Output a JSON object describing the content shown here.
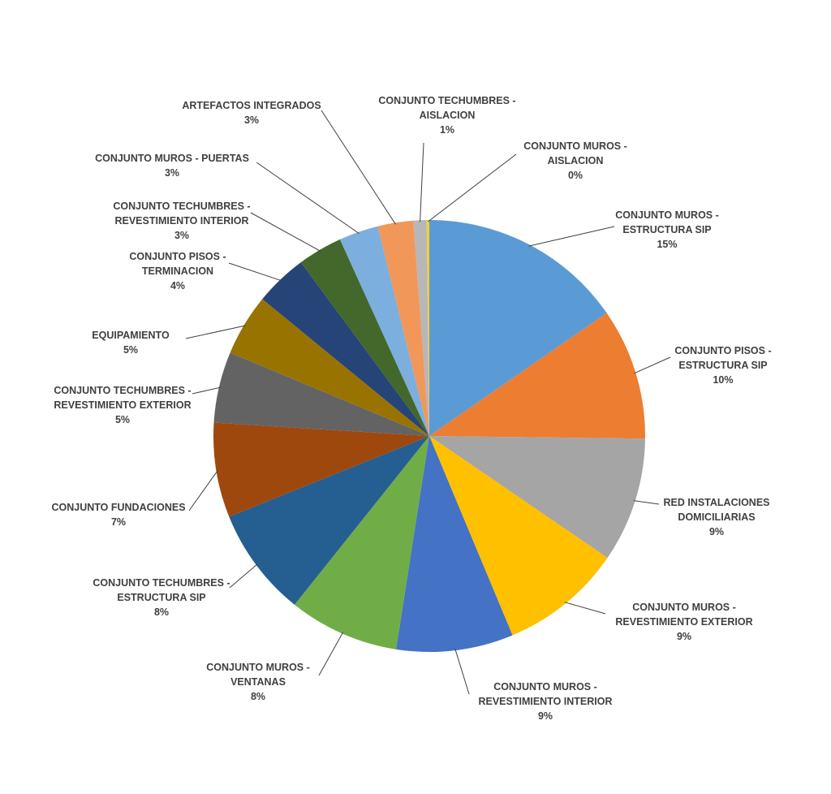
{
  "chart_data": {
    "type": "pie",
    "title": "",
    "start_angle_deg": 0,
    "direction": "clockwise",
    "slices": [
      {
        "label": [
          "CONJUNTO MUROS -",
          "ESTRUCTURA SIP"
        ],
        "display": "15%",
        "value": 15.6,
        "color": "#5b9bd5"
      },
      {
        "label": [
          "CONJUNTO PISOS -",
          "ESTRUCTURA SIP"
        ],
        "display": "10%",
        "value": 10.0,
        "color": "#ed7d31"
      },
      {
        "label": [
          "RED INSTALACIONES",
          "DOMICILIARIAS"
        ],
        "display": "9%",
        "value": 9.5,
        "color": "#a5a5a5"
      },
      {
        "label": [
          "CONJUNTO MUROS -",
          "REVESTIMIENTO EXTERIOR"
        ],
        "display": "9%",
        "value": 9.3,
        "color": "#ffc000"
      },
      {
        "label": [
          "CONJUNTO MUROS -",
          "REVESTIMIENTO INTERIOR"
        ],
        "display": "9%",
        "value": 8.9,
        "color": "#4472c4"
      },
      {
        "label": [
          "CONJUNTO MUROS -",
          "VENTANAS"
        ],
        "display": "8%",
        "value": 8.4,
        "color": "#70ad47"
      },
      {
        "label": [
          "CONJUNTO TECHUMBRES -",
          "ESTRUCTURA SIP"
        ],
        "display": "8%",
        "value": 8.3,
        "color": "#255e91"
      },
      {
        "label": [
          "CONJUNTO FUNDACIONES"
        ],
        "display": "7%",
        "value": 7.2,
        "color": "#9e480e"
      },
      {
        "label": [
          "CONJUNTO TECHUMBRES -",
          "REVESTIMIENTO EXTERIOR"
        ],
        "display": "5%",
        "value": 5.4,
        "color": "#636363"
      },
      {
        "label": [
          "EQUIPAMIENTO"
        ],
        "display": "5%",
        "value": 4.7,
        "color": "#997300"
      },
      {
        "label": [
          "CONJUNTO PISOS -",
          "TERMINACION"
        ],
        "display": "4%",
        "value": 4.0,
        "color": "#264478"
      },
      {
        "label": [
          "CONJUNTO TECHUMBRES -",
          "REVESTIMIENTO INTERIOR"
        ],
        "display": "3%",
        "value": 3.4,
        "color": "#43682b"
      },
      {
        "label": [
          "CONJUNTO MUROS - PUERTAS"
        ],
        "display": "3%",
        "value": 3.0,
        "color": "#7cafdd"
      },
      {
        "label": [
          "ARTEFACTOS INTEGRADOS"
        ],
        "display": "3%",
        "value": 2.7,
        "color": "#f1975a"
      },
      {
        "label": [
          "CONJUNTO TECHUMBRES -",
          "AISLACION"
        ],
        "display": "1%",
        "value": 1.0,
        "color": "#b7b7b7"
      },
      {
        "label": [
          "CONJUNTO MUROS -",
          "AISLACION"
        ],
        "display": "0%",
        "value": 0.2,
        "color": "#ffcd33"
      }
    ]
  }
}
